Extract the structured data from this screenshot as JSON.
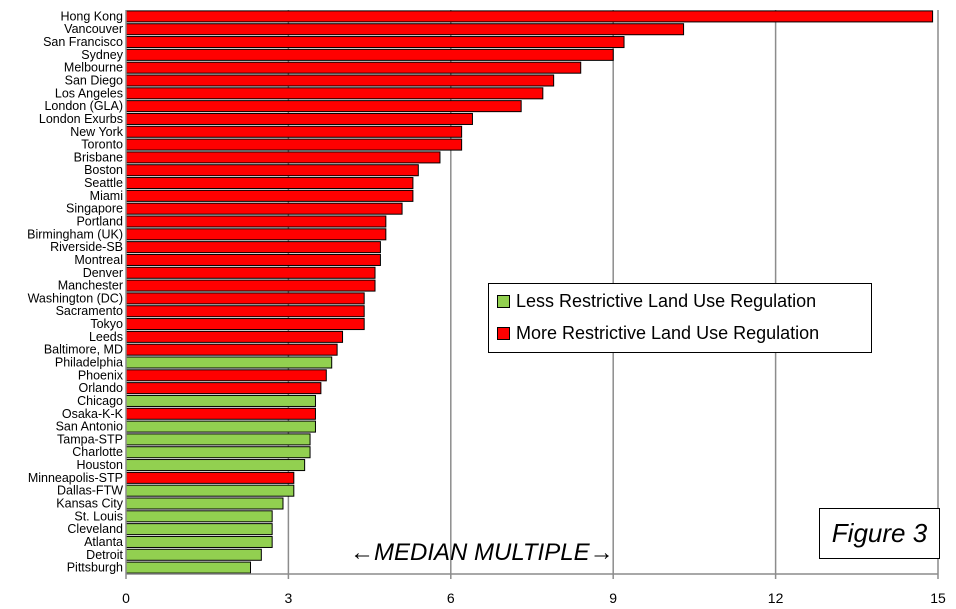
{
  "chart_data": {
    "type": "bar",
    "orientation": "horizontal",
    "categories": [
      "Hong Kong",
      "Vancouver",
      "San Francisco",
      "Sydney",
      "Melbourne",
      "San Diego",
      "Los Angeles",
      "London (GLA)",
      "London Exurbs",
      "New York",
      "Toronto",
      "Brisbane",
      "Boston",
      "Seattle",
      "Miami",
      "Singapore",
      "Portland",
      "Birmingham (UK)",
      "Riverside-SB",
      "Montreal",
      "Denver",
      "Manchester",
      "Washington (DC)",
      "Sacramento",
      "Tokyo",
      "Leeds",
      "Baltimore, MD",
      "Philadelphia",
      "Phoenix",
      "Orlando",
      "Chicago",
      "Osaka-K-K",
      "San Antonio",
      "Tampa-STP",
      "Charlotte",
      "Houston",
      "Minneapolis-STP",
      "Dallas-FTW",
      "Kansas City",
      "St. Louis",
      "Cleveland",
      "Atlanta",
      "Detroit",
      "Pittsburgh"
    ],
    "values": [
      14.9,
      10.3,
      9.2,
      9.0,
      8.4,
      7.9,
      7.7,
      7.3,
      6.4,
      6.2,
      6.2,
      5.8,
      5.4,
      5.3,
      5.3,
      5.1,
      4.8,
      4.8,
      4.7,
      4.7,
      4.6,
      4.6,
      4.4,
      4.4,
      4.4,
      4.0,
      3.9,
      3.8,
      3.7,
      3.6,
      3.5,
      3.5,
      3.5,
      3.4,
      3.4,
      3.3,
      3.1,
      3.1,
      2.9,
      2.7,
      2.7,
      2.7,
      2.5,
      2.3
    ],
    "groups": [
      "more",
      "more",
      "more",
      "more",
      "more",
      "more",
      "more",
      "more",
      "more",
      "more",
      "more",
      "more",
      "more",
      "more",
      "more",
      "more",
      "more",
      "more",
      "more",
      "more",
      "more",
      "more",
      "more",
      "more",
      "more",
      "more",
      "more",
      "less",
      "more",
      "more",
      "less",
      "more",
      "less",
      "less",
      "less",
      "less",
      "more",
      "less",
      "less",
      "less",
      "less",
      "less",
      "less",
      "less"
    ],
    "legend": [
      {
        "key": "less",
        "name": "Less Restrictive Land Use Regulation",
        "color": "#92d050"
      },
      {
        "key": "more",
        "name": "More Restrictive Land Use Regulation",
        "color": "#ff0000"
      }
    ],
    "xlabel": "←MEDIAN MULTIPLE→",
    "xlim": [
      0,
      15
    ],
    "xticks": [
      0,
      3,
      6,
      9,
      12,
      15
    ],
    "grid": "vertical",
    "legend_placement": "center-right",
    "figure_label": "Figure 3"
  }
}
